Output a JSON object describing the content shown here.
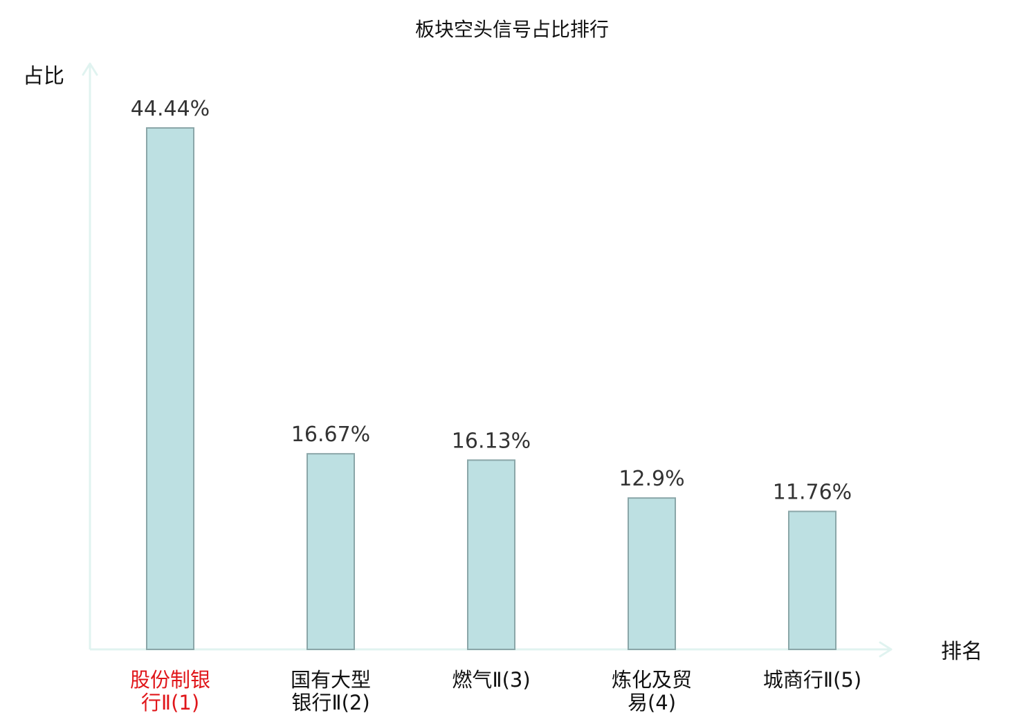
{
  "chart_data": {
    "type": "bar",
    "title": "板块空头信号占比排行",
    "ylabel": "占比",
    "xlabel": "排名",
    "categories": [
      [
        "股份制银",
        "行Ⅱ(1)"
      ],
      [
        "国有大型",
        "银行Ⅱ(2)"
      ],
      [
        "燃气Ⅱ(3)"
      ],
      [
        "炼化及贸",
        "易(4)"
      ],
      [
        "城商行Ⅱ(5)"
      ]
    ],
    "values": [
      44.44,
      16.67,
      16.13,
      12.9,
      11.76
    ],
    "value_labels": [
      "44.44%",
      "16.67%",
      "16.13%",
      "12.9%",
      "11.76%"
    ],
    "highlight_index": 0,
    "ylim": [
      0,
      44.44
    ],
    "grid": false,
    "legend": "none",
    "colors": {
      "bar_fill": "#bde0e2",
      "bar_stroke": "#8aa6a8",
      "axis": "#e0f3f0",
      "highlight_label": "#e0161a",
      "normal_label": "#111111",
      "value_label": "#333333"
    }
  }
}
